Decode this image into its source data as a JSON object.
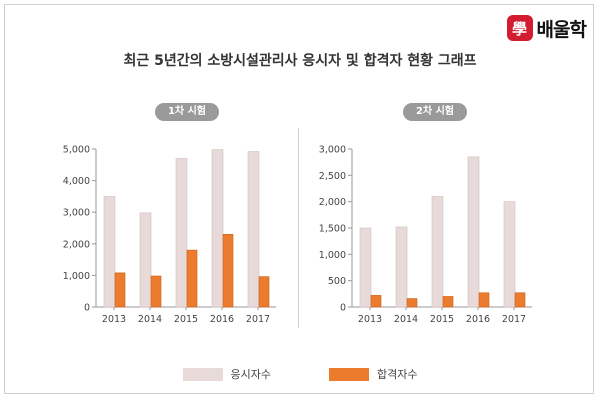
{
  "title": "최근 5년간의 소방시설관리사 응시자 및 합격자 현황 그래프",
  "logo": {
    "mark": "學",
    "text": "배울학"
  },
  "colors": {
    "applicants": "#e8dad8",
    "applicants_edge": "#cfc0be",
    "passers": "#ec7b2e",
    "passers_edge": "#c85f18",
    "axis": "#999999",
    "text": "#444444"
  },
  "chart_data": [
    {
      "type": "bar",
      "title": "1차 시험",
      "categories": [
        "2013",
        "2014",
        "2015",
        "2016",
        "2017"
      ],
      "series": [
        {
          "name": "응시자수",
          "values": [
            3500,
            2980,
            4700,
            4980,
            4920
          ]
        },
        {
          "name": "합격자수",
          "values": [
            1080,
            980,
            1800,
            2300,
            960
          ]
        }
      ],
      "yticks": [
        "0",
        "1,000",
        "2,000",
        "3,000",
        "4,000",
        "5,000"
      ],
      "ylim": [
        0,
        5000
      ],
      "xlabel": "",
      "ylabel": "",
      "grid": false
    },
    {
      "type": "bar",
      "title": "2차 시험",
      "categories": [
        "2013",
        "2014",
        "2015",
        "2016",
        "2017"
      ],
      "series": [
        {
          "name": "응시자수",
          "values": [
            1500,
            1520,
            2100,
            2850,
            2000
          ]
        },
        {
          "name": "합격자수",
          "values": [
            220,
            160,
            200,
            270,
            270
          ]
        }
      ],
      "yticks": [
        "0",
        "500",
        "1,000",
        "1,500",
        "2,000",
        "2,500",
        "3,000"
      ],
      "ylim": [
        0,
        3000
      ],
      "xlabel": "",
      "ylabel": "",
      "grid": false
    }
  ],
  "legend": {
    "placement": "bottom-center",
    "items": [
      {
        "label": "응시자수"
      },
      {
        "label": "합격자수"
      }
    ]
  }
}
